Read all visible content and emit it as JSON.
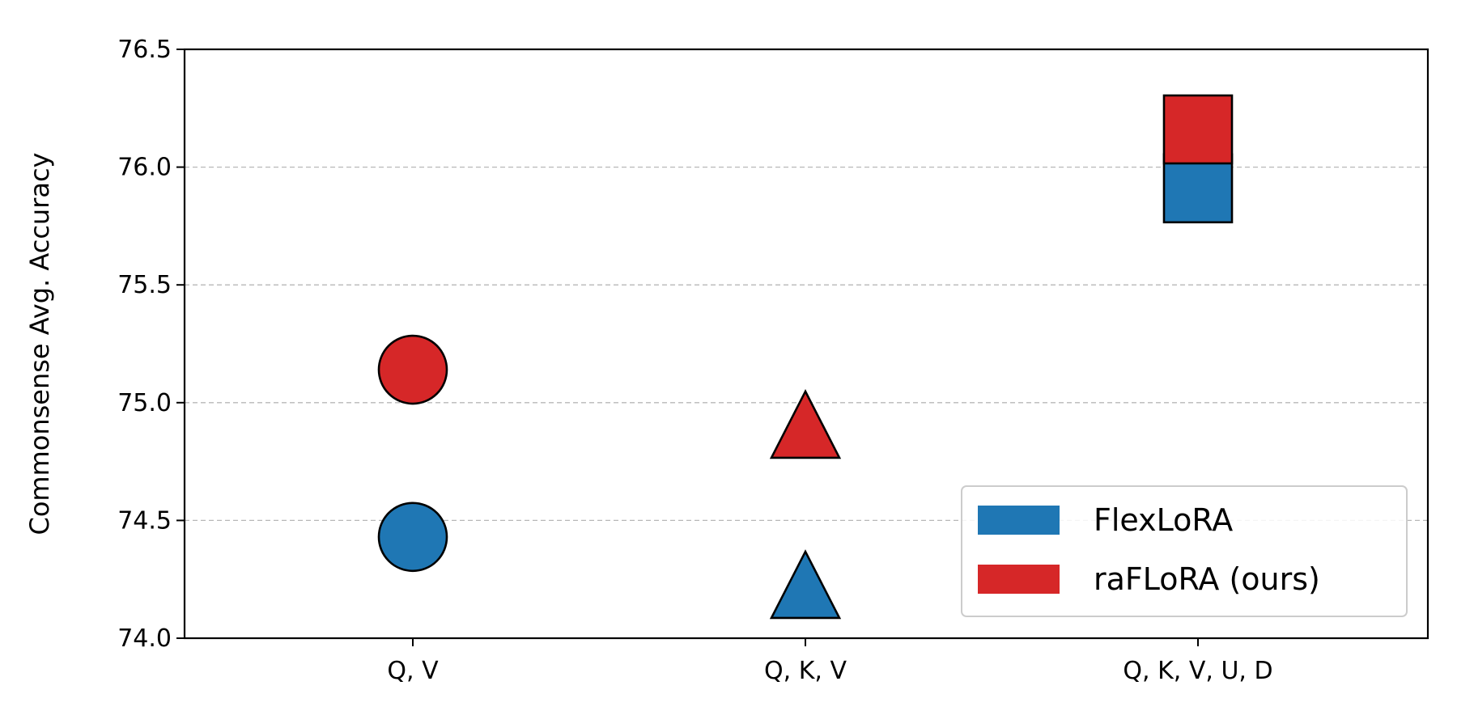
{
  "chart_data": {
    "type": "scatter",
    "ylabel": "Commonsense Avg. Accuracy",
    "xlabel": "",
    "categories": [
      "Q, V",
      "Q, K, V",
      "Q, K, V, U, D"
    ],
    "ylim": [
      74.0,
      76.5
    ],
    "yticks": [
      "74.0",
      "74.5",
      "75.0",
      "75.5",
      "76.0",
      "76.5"
    ],
    "grid": "horizontal dashed",
    "legend_position": "lower right",
    "markers": [
      "circle",
      "triangle",
      "square"
    ],
    "series": [
      {
        "name": "FlexLoRA",
        "color": "#1f77b4",
        "values": [
          74.43,
          74.21,
          75.91
        ]
      },
      {
        "name": "raFLoRA (ours)",
        "color": "#d62728",
        "values": [
          75.14,
          74.89,
          76.16
        ]
      }
    ]
  }
}
